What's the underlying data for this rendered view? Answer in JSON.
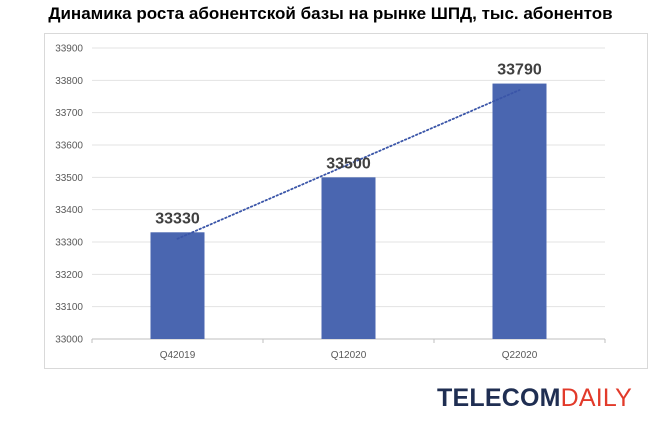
{
  "chart_data": {
    "type": "bar",
    "title": "Динамика роста абонентской базы на рынке ШПД, тыс. абонентов",
    "categories": [
      "Q42019",
      "Q12020",
      "Q22020"
    ],
    "values": [
      33330,
      33500,
      33790
    ],
    "data_labels": [
      "33330",
      "33500",
      "33790"
    ],
    "ylim": [
      33000,
      33900
    ],
    "yticks": [
      "33000",
      "33100",
      "33200",
      "33300",
      "33400",
      "33500",
      "33600",
      "33700",
      "33800",
      "33900"
    ],
    "trendline": "linear, dotted",
    "grid": true,
    "bar_color": "#4a66b0",
    "trend_color": "#3a55a8"
  },
  "brand": {
    "part1": "TELECOM",
    "part2": "DAILY",
    "color1": "#1f2e52",
    "color2": "#e23a2a"
  }
}
